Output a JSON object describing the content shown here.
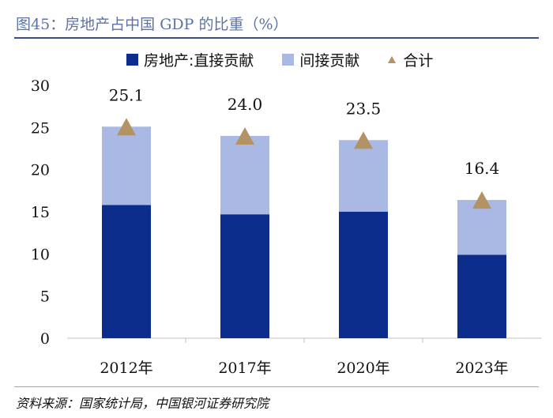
{
  "header": {
    "title": "图45：房地产占中国 GDP 的比重（%）"
  },
  "legend": {
    "items": [
      {
        "label": "房地产:直接贡献",
        "color": "#0c2d8c",
        "shape": "square"
      },
      {
        "label": "间接贡献",
        "color": "#a9b9e3",
        "shape": "square"
      },
      {
        "label": "合计",
        "color": "#b39264",
        "shape": "triangle"
      }
    ]
  },
  "chart_data": {
    "type": "bar",
    "stacked": true,
    "title": "图45：房地产占中国 GDP 的比重（%）",
    "categories": [
      "2012年",
      "2017年",
      "2020年",
      "2023年"
    ],
    "series": [
      {
        "name": "房地产:直接贡献",
        "values": [
          15.8,
          14.7,
          15.0,
          9.9
        ],
        "color": "#0c2d8c"
      },
      {
        "name": "间接贡献",
        "values": [
          9.3,
          9.3,
          8.5,
          6.5
        ],
        "color": "#a9b9e3"
      }
    ],
    "total_series": {
      "name": "合计",
      "values": [
        25.1,
        24.0,
        23.5,
        16.4
      ],
      "color": "#b39264",
      "marker": "triangle"
    },
    "data_labels": [
      "25.1",
      "24.0",
      "23.5",
      "16.4"
    ],
    "yticks": [
      0,
      5,
      10,
      15,
      20,
      25,
      30
    ],
    "ylim": [
      0,
      30
    ],
    "xlabel": "",
    "ylabel": "",
    "grid": false,
    "legend_position": "top"
  },
  "footer": {
    "source": "资料来源：国家统计局，中国银河证券研究院"
  }
}
